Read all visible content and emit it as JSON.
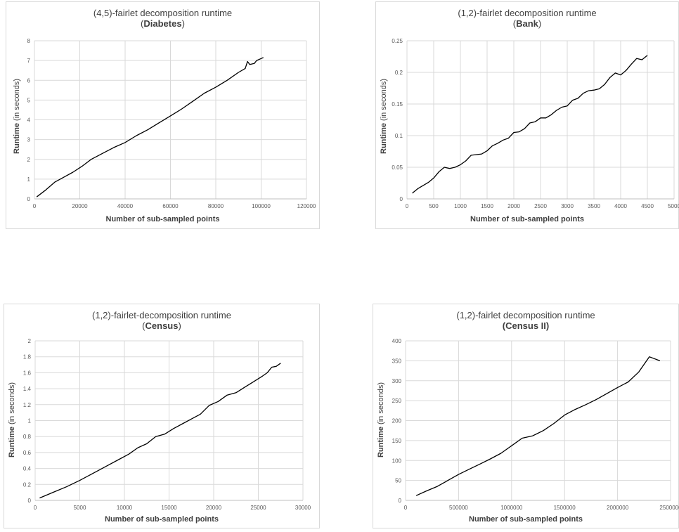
{
  "chart_data": [
    {
      "type": "line",
      "title": "(4,5)-fairlet decomposition runtime",
      "subtitle_open": "(",
      "subtitle": "Diabetes",
      "subtitle_close": ")",
      "xlabel": "Number of sub-sampled points",
      "ylabel": "Runtime",
      "ylabel_unit": "(in seconds)",
      "xlim": [
        0,
        120000
      ],
      "ylim": [
        0,
        8
      ],
      "xticks": [
        0,
        20000,
        40000,
        60000,
        80000,
        100000,
        120000
      ],
      "yticks": [
        0,
        1,
        2,
        3,
        4,
        5,
        6,
        7,
        8
      ],
      "grid": true,
      "series": [
        {
          "x": [
            1000,
            5000,
            9000,
            13000,
            17000,
            21000,
            25000,
            30000,
            35000,
            40000,
            45000,
            50000,
            55000,
            60000,
            65000,
            70000,
            75000,
            80000,
            85000,
            90000,
            93000,
            94000,
            95000,
            97000,
            98000,
            100000,
            101000
          ],
          "y": [
            0.1,
            0.45,
            0.85,
            1.1,
            1.35,
            1.65,
            2.0,
            2.3,
            2.6,
            2.85,
            3.2,
            3.5,
            3.85,
            4.2,
            4.55,
            4.95,
            5.35,
            5.65,
            6.0,
            6.4,
            6.6,
            6.95,
            6.8,
            6.85,
            7.0,
            7.1,
            7.15
          ]
        }
      ]
    },
    {
      "type": "line",
      "title": "(1,2)-fairlet decomposition runtime",
      "subtitle_open": "(",
      "subtitle": "Bank",
      "subtitle_close": ")",
      "xlabel": "Number of sub-sampled points",
      "ylabel": "Runtime",
      "ylabel_unit": "(in seconds)",
      "xlim": [
        0,
        5000
      ],
      "ylim": [
        0,
        0.25
      ],
      "xticks": [
        0,
        500,
        1000,
        1500,
        2000,
        2500,
        3000,
        3500,
        4000,
        4500,
        5000
      ],
      "yticks": [
        0,
        0.05,
        0.1,
        0.15,
        0.2,
        0.25
      ],
      "grid": true,
      "series": [
        {
          "x": [
            100,
            200,
            300,
            400,
            500,
            600,
            700,
            800,
            900,
            1000,
            1100,
            1200,
            1300,
            1400,
            1500,
            1600,
            1700,
            1800,
            1900,
            2000,
            2100,
            2200,
            2300,
            2400,
            2500,
            2600,
            2700,
            2800,
            2900,
            3000,
            3100,
            3200,
            3300,
            3400,
            3500,
            3600,
            3700,
            3800,
            3900,
            4000,
            4100,
            4200,
            4300,
            4400,
            4500
          ],
          "y": [
            0.009,
            0.016,
            0.021,
            0.026,
            0.033,
            0.043,
            0.05,
            0.048,
            0.05,
            0.054,
            0.06,
            0.069,
            0.07,
            0.071,
            0.076,
            0.084,
            0.088,
            0.093,
            0.096,
            0.105,
            0.106,
            0.111,
            0.12,
            0.122,
            0.128,
            0.128,
            0.133,
            0.14,
            0.145,
            0.147,
            0.156,
            0.159,
            0.167,
            0.171,
            0.172,
            0.174,
            0.181,
            0.192,
            0.199,
            0.196,
            0.203,
            0.213,
            0.222,
            0.22,
            0.227
          ]
        }
      ]
    },
    {
      "type": "line",
      "title": "(1,2)-fairlet-decomposition runtime",
      "subtitle_open": "(",
      "subtitle": "Census",
      "subtitle_close": ")",
      "xlabel": "Number of sub-sampled points",
      "ylabel": "Runtime",
      "ylabel_unit": "(in seconds)",
      "xlim": [
        0,
        30000
      ],
      "ylim": [
        0,
        2
      ],
      "xticks": [
        0,
        5000,
        10000,
        15000,
        20000,
        25000,
        30000
      ],
      "yticks": [
        0,
        0.2,
        0.4,
        0.6,
        0.8,
        1,
        1.2,
        1.4,
        1.6,
        1.8,
        2
      ],
      "grid": true,
      "series": [
        {
          "x": [
            500,
            2000,
            3500,
            5000,
            6500,
            8000,
            9500,
            10500,
            11500,
            12500,
            13500,
            14500,
            15500,
            16500,
            17500,
            18500,
            19500,
            20500,
            21500,
            22500,
            23500,
            24500,
            25500,
            26000,
            26500,
            27000,
            27500
          ],
          "y": [
            0.03,
            0.1,
            0.17,
            0.25,
            0.34,
            0.43,
            0.52,
            0.58,
            0.66,
            0.71,
            0.8,
            0.83,
            0.9,
            0.96,
            1.02,
            1.08,
            1.19,
            1.24,
            1.32,
            1.35,
            1.42,
            1.49,
            1.56,
            1.6,
            1.67,
            1.68,
            1.72
          ]
        }
      ]
    },
    {
      "type": "line",
      "title": "(1,2)-fairlet decomposition runtime",
      "subtitle_open": "",
      "subtitle": "(Census II)",
      "subtitle_close": "",
      "xlabel": "Number of sub-sampled points",
      "ylabel": "Runtime",
      "ylabel_unit": "(in seconds)",
      "xlim": [
        0,
        2500000
      ],
      "ylim": [
        0,
        400
      ],
      "xticks": [
        0,
        500000,
        1000000,
        1500000,
        2000000,
        2500000
      ],
      "yticks": [
        0,
        50,
        100,
        150,
        200,
        250,
        300,
        350,
        400
      ],
      "grid": true,
      "series": [
        {
          "x": [
            100000,
            200000,
            300000,
            400000,
            500000,
            600000,
            700000,
            800000,
            900000,
            1000000,
            1100000,
            1200000,
            1300000,
            1400000,
            1500000,
            1600000,
            1700000,
            1800000,
            1900000,
            2000000,
            2100000,
            2200000,
            2300000,
            2400000
          ],
          "y": [
            12,
            24,
            35,
            50,
            65,
            78,
            91,
            104,
            118,
            137,
            156,
            162,
            175,
            193,
            214,
            228,
            240,
            253,
            268,
            283,
            297,
            322,
            360,
            350
          ]
        }
      ]
    }
  ]
}
